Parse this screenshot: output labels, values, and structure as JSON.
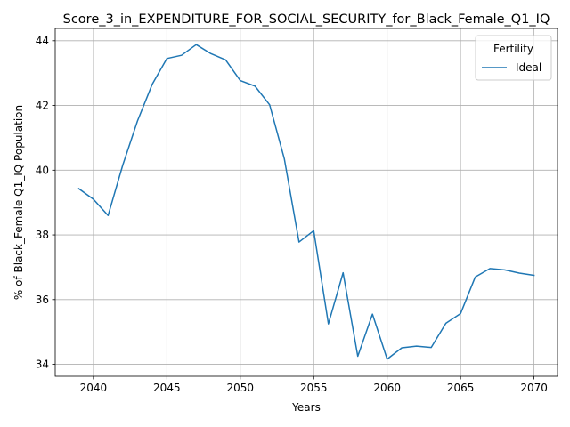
{
  "chart_data": {
    "type": "line",
    "title": "Score_3_in_EXPENDITURE_FOR_SOCIAL_SECURITY_for_Black_Female_Q1_IQ",
    "xlabel": "Years",
    "ylabel": "% of Black_Female Q1_IQ Population",
    "xlim": [
      2037.4,
      2071.6
    ],
    "ylim": [
      33.63,
      44.38
    ],
    "x_ticks": [
      2040,
      2045,
      2050,
      2055,
      2060,
      2065,
      2070
    ],
    "y_ticks": [
      34,
      36,
      38,
      40,
      42,
      44
    ],
    "grid": true,
    "legend": {
      "title": "Fertility",
      "placement": "top-right"
    },
    "colors": {
      "series": "#1f77b4",
      "grid": "#b0b0b0",
      "axis": "#000000"
    },
    "series": [
      {
        "name": "Ideal",
        "x": [
          2039,
          2040,
          2041,
          2042,
          2043,
          2044,
          2045,
          2046,
          2047,
          2048,
          2049,
          2050,
          2051,
          2052,
          2053,
          2054,
          2055,
          2056,
          2057,
          2058,
          2059,
          2060,
          2061,
          2062,
          2063,
          2064,
          2065,
          2066,
          2067,
          2068,
          2069,
          2070
        ],
        "values": [
          39.43,
          39.1,
          38.6,
          40.16,
          41.52,
          42.65,
          43.45,
          43.55,
          43.88,
          43.6,
          43.41,
          42.77,
          42.6,
          42.02,
          40.35,
          37.78,
          38.13,
          35.25,
          36.83,
          34.25,
          35.55,
          34.16,
          34.51,
          34.56,
          34.52,
          35.27,
          35.57,
          36.7,
          36.96,
          36.92,
          36.82,
          36.75
        ]
      }
    ]
  }
}
